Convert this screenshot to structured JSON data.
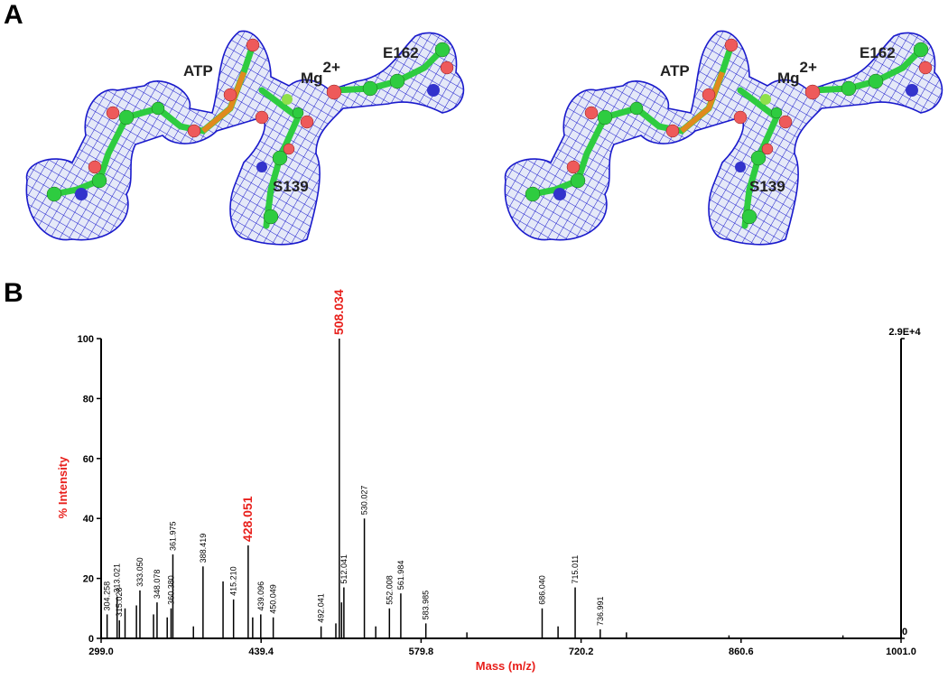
{
  "panel_a": {
    "label": "A",
    "views": [
      {
        "atp": "ATP",
        "mg": {
          "text": "Mg",
          "superscript": "2+"
        },
        "e162": "E162",
        "s139": "S139"
      },
      {
        "atp": "ATP",
        "mg": {
          "text": "Mg",
          "superscript": "2+"
        },
        "e162": "E162",
        "s139": "S139"
      }
    ]
  },
  "panel_b_label": "B",
  "chart_data": {
    "type": "stick",
    "xlabel": "Mass (m/z)",
    "ylabel": "% Intensity",
    "xlim": [
      299.0,
      1001.0
    ],
    "xticks": [
      {
        "value": 299.0,
        "label": "299.0"
      },
      {
        "value": 439.4,
        "label": "439.4"
      },
      {
        "value": 579.8,
        "label": "579.8"
      },
      {
        "value": 720.2,
        "label": "720.2"
      },
      {
        "value": 860.6,
        "label": "860.6"
      },
      {
        "value": 1001.0,
        "label": "1001.0"
      }
    ],
    "ylim": [
      0,
      100
    ],
    "yticks": [
      0,
      20,
      40,
      60,
      80,
      100
    ],
    "y2lim": [
      0,
      29000
    ],
    "y2ticks": [
      0,
      {
        "value": 29000,
        "label": "2.9E+4"
      }
    ],
    "axis_label_color": "#e8201c",
    "color": "#000000",
    "x": [
      304.258,
      313.021,
      315.028,
      320,
      330,
      333.05,
      345,
      348.078,
      357,
      360.38,
      361.975,
      380,
      388.419,
      406,
      415.21,
      428.051,
      432,
      439.096,
      450.049,
      492.041,
      505,
      508.034,
      510,
      512.041,
      530.027,
      540,
      552.008,
      561.984,
      583.985,
      620,
      686.04,
      700,
      715.011,
      736.991,
      760,
      850,
      950
    ],
    "values": [
      8,
      14,
      6,
      10,
      11,
      16,
      8,
      12,
      7,
      10,
      28,
      4,
      24,
      19,
      13,
      31,
      7,
      8,
      7,
      4,
      5,
      100,
      12,
      17,
      40,
      4,
      10,
      15,
      5,
      2,
      10,
      4,
      17,
      3,
      2,
      1,
      1
    ],
    "x_labels": [
      "304.258",
      "313.021",
      "315.028",
      null,
      null,
      "333.050",
      null,
      "348.078",
      null,
      "360.380",
      "361.975",
      null,
      "388.419",
      null,
      "415.210",
      "428.051",
      null,
      "439.096",
      "450.049",
      "492.041",
      null,
      "508.034",
      null,
      "512.041",
      "530.027",
      null,
      "552.008",
      "561.984",
      "583.985",
      null,
      "686.040",
      null,
      "715.011",
      "736.991",
      null,
      null,
      null
    ],
    "label_colors": [
      null,
      null,
      null,
      null,
      null,
      null,
      null,
      null,
      null,
      null,
      null,
      null,
      null,
      null,
      null,
      "#e8201c",
      null,
      null,
      null,
      null,
      null,
      "#e8201c",
      null,
      null,
      null,
      null,
      null,
      null,
      null,
      null,
      null,
      null,
      null,
      null,
      null,
      null,
      null
    ]
  }
}
